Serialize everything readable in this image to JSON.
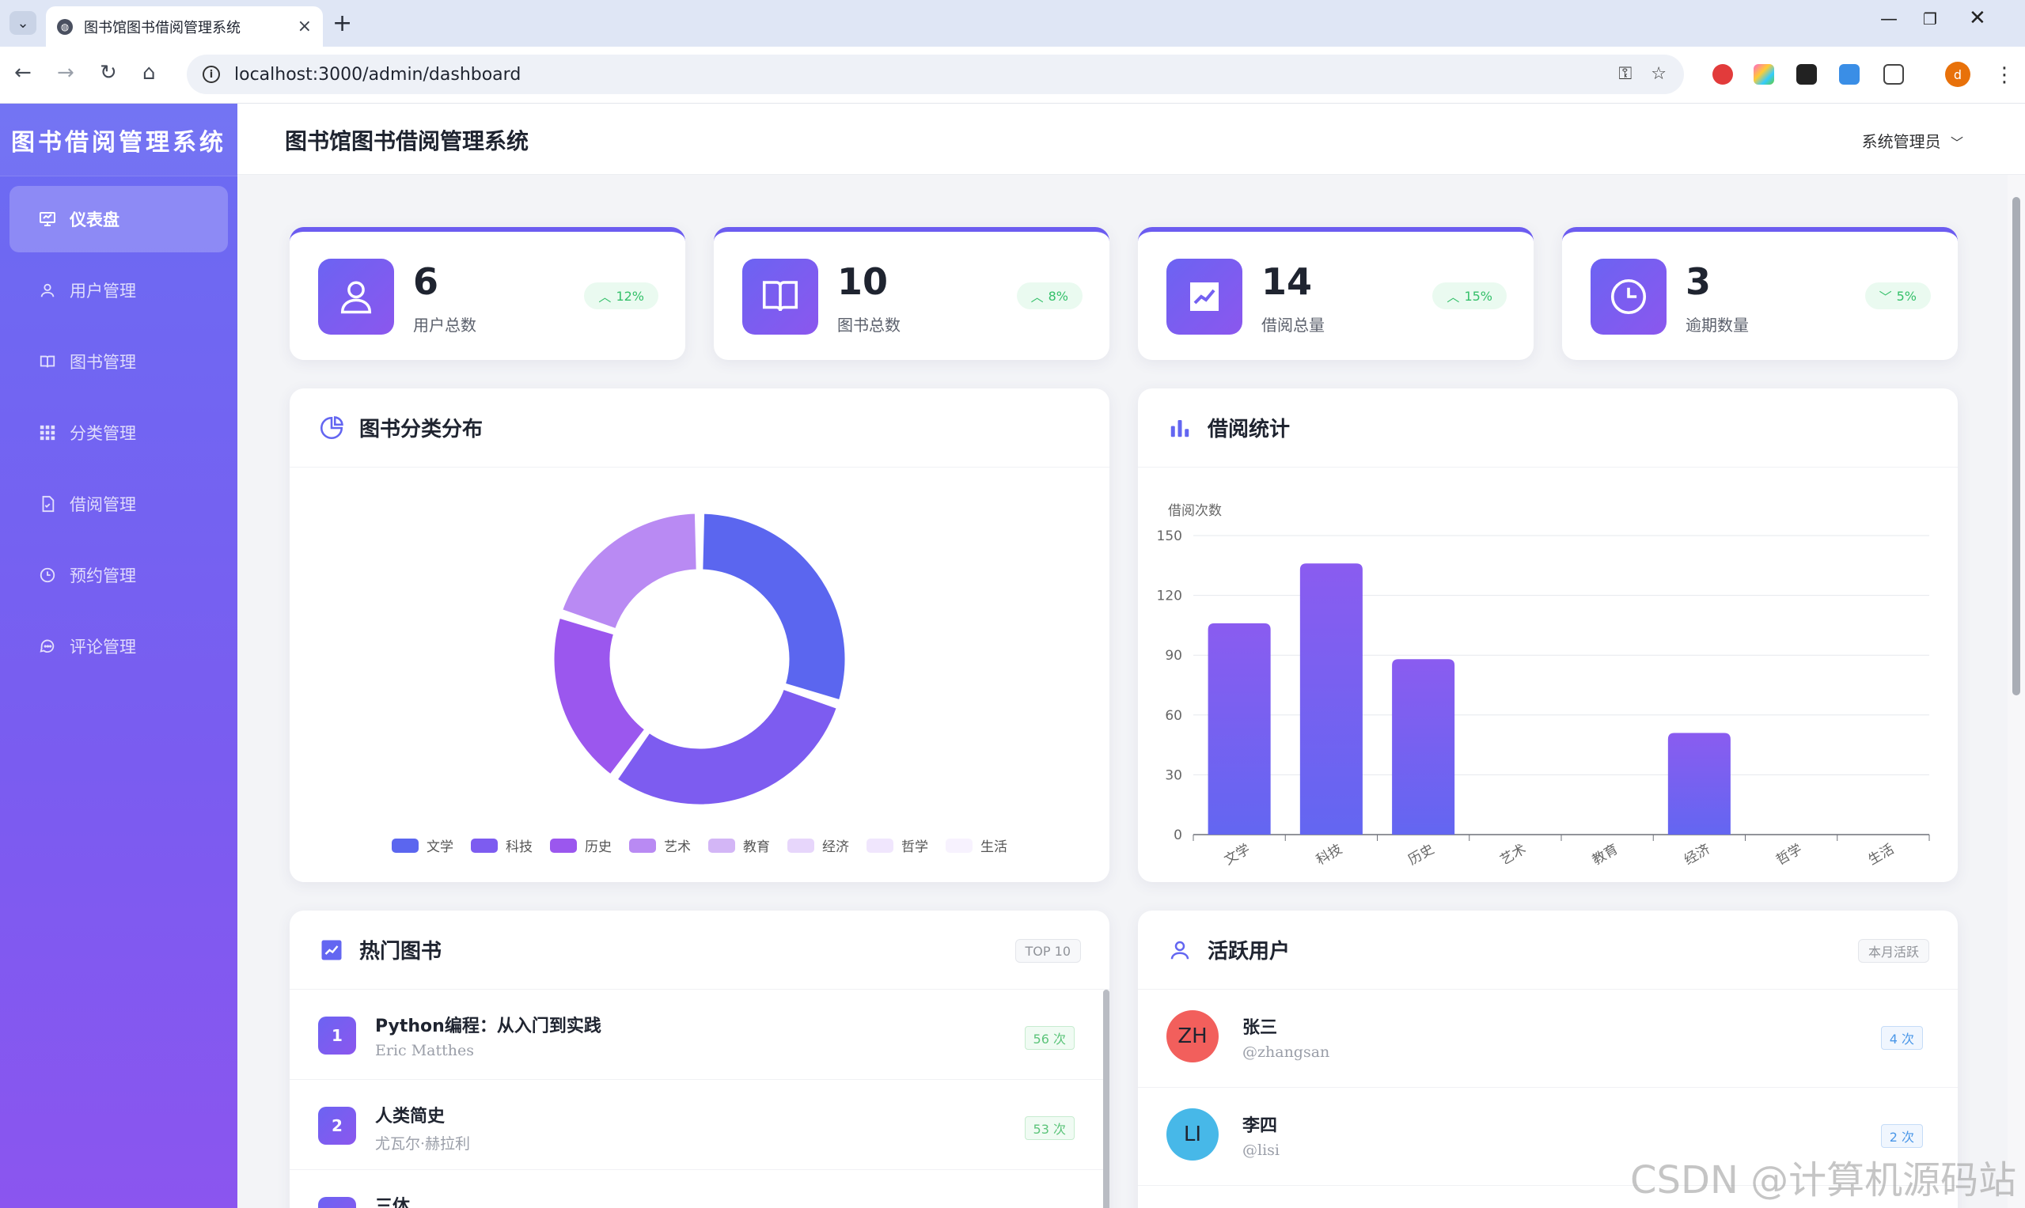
{
  "browser": {
    "tab_title": "图书馆图书借阅管理系统",
    "url": "localhost:3000/admin/dashboard",
    "profile_initial": "d"
  },
  "sidebar": {
    "brand": "图书借阅管理系统",
    "items": [
      {
        "label": "仪表盘",
        "icon": "dashboard-icon",
        "active": true
      },
      {
        "label": "用户管理",
        "icon": "user-icon",
        "active": false
      },
      {
        "label": "图书管理",
        "icon": "book-icon",
        "active": false
      },
      {
        "label": "分类管理",
        "icon": "grid-icon",
        "active": false
      },
      {
        "label": "借阅管理",
        "icon": "document-icon",
        "active": false
      },
      {
        "label": "预约管理",
        "icon": "clock-icon",
        "active": false
      },
      {
        "label": "评论管理",
        "icon": "comment-icon",
        "active": false
      }
    ]
  },
  "header": {
    "title": "图书馆图书借阅管理系统",
    "user": "系统管理员"
  },
  "stats": [
    {
      "value": "6",
      "label": "用户总数",
      "trend": "12%",
      "direction": "up",
      "icon": "user-icon"
    },
    {
      "value": "10",
      "label": "图书总数",
      "trend": "8%",
      "direction": "up",
      "icon": "book-icon"
    },
    {
      "value": "14",
      "label": "借阅总量",
      "trend": "15%",
      "direction": "up",
      "icon": "trend-chart-icon"
    },
    {
      "value": "3",
      "label": "逾期数量",
      "trend": "5%",
      "direction": "down",
      "icon": "clock-icon"
    }
  ],
  "category_panel": {
    "title": "图书分类分布"
  },
  "borrow_panel": {
    "title": "借阅统计"
  },
  "hot_books": {
    "title": "热门图书",
    "tag": "TOP 10",
    "items": [
      {
        "rank": "1",
        "title": "Python编程：从入门到实践",
        "author": "Eric Matthes",
        "count": "56 次"
      },
      {
        "rank": "2",
        "title": "人类简史",
        "author": "尤瓦尔·赫拉利",
        "count": "53 次"
      },
      {
        "rank": "3",
        "title": "三体",
        "author": "",
        "count": ""
      }
    ]
  },
  "active_users": {
    "title": "活跃用户",
    "tag": "本月活跃",
    "items": [
      {
        "initials": "ZH",
        "name": "张三",
        "handle": "@zhangsan",
        "count": "4 次",
        "color": "#f25f5c"
      },
      {
        "initials": "LI",
        "name": "李四",
        "handle": "@lisi",
        "count": "2 次",
        "color": "#47b8e8"
      }
    ]
  },
  "watermark": "CSDN @计算机源码站",
  "chart_data": [
    {
      "type": "pie",
      "variant": "donut",
      "legend": [
        "文学",
        "科技",
        "历史",
        "艺术",
        "教育",
        "经济",
        "哲学",
        "生活"
      ],
      "colors": [
        "#5b66ef",
        "#7d5cf0",
        "#9b57ee",
        "#b98af3",
        "#d3b6f6",
        "#e7d6fb",
        "#f0e6fd",
        "#f7f2fe"
      ],
      "values": [
        3,
        3,
        2,
        2,
        0,
        0,
        0,
        0
      ],
      "legend_position": "bottom"
    },
    {
      "type": "bar",
      "ylabel": "借阅次数",
      "categories": [
        "文学",
        "科技",
        "历史",
        "艺术",
        "教育",
        "经济",
        "哲学",
        "生活"
      ],
      "values": [
        106,
        136,
        88,
        0,
        0,
        51,
        0,
        0
      ],
      "ylim": [
        0,
        150
      ],
      "yticks": [
        0,
        30,
        60,
        90,
        120,
        150
      ],
      "grid": true,
      "bar_gradient": [
        "#8a5cf0",
        "#6366f1"
      ]
    }
  ]
}
